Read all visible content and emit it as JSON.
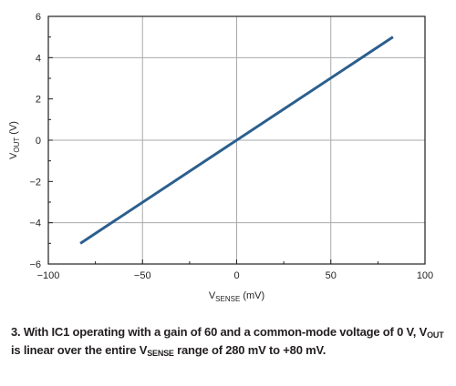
{
  "chart_data": {
    "type": "line",
    "title": "",
    "xlabel_main": "V",
    "xlabel_sub": "SENSE",
    "xlabel_unit": " (mV)",
    "ylabel_main": "V",
    "ylabel_sub": "OUT",
    "ylabel_unit": " (V)",
    "xlim": [
      -100,
      100
    ],
    "ylim": [
      -6,
      6
    ],
    "xticks": [
      -100,
      -50,
      0,
      50,
      100
    ],
    "xtick_labels": [
      "−100",
      "−50",
      "0",
      "50",
      "100"
    ],
    "yticks": [
      -6,
      -4,
      -2,
      0,
      2,
      4,
      6
    ],
    "ytick_labels": [
      "−6",
      "−4",
      "−2",
      "0",
      "2",
      "4",
      "6"
    ],
    "grid": true,
    "series": [
      {
        "x": [
          -83,
          83
        ],
        "y": [
          -5,
          5
        ],
        "color": "#2b5f8e"
      }
    ]
  },
  "caption": {
    "part1": "3. With IC1 operating with a gain of 60 and a common-mode voltage of 0 V, V",
    "sub1": "OUT",
    "part2": " is linear over the entire V",
    "sub2": "SENSE",
    "part3": " range of 280 mV to +80 mV."
  }
}
